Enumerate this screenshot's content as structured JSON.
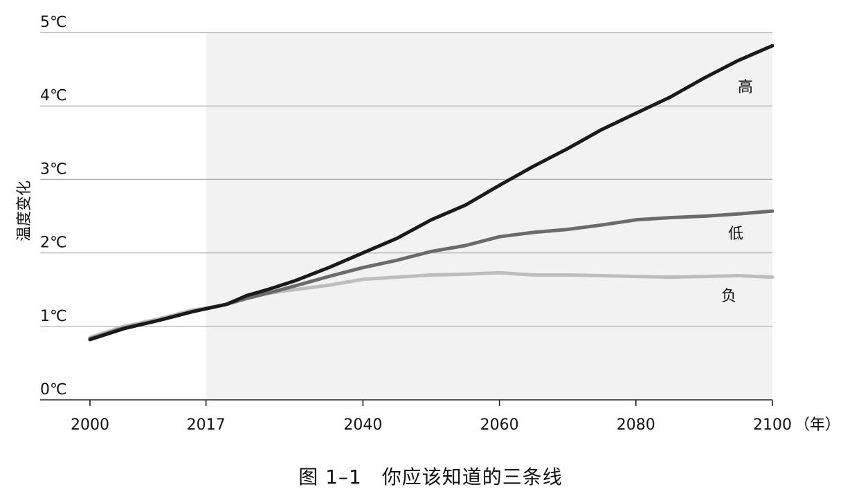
{
  "chart_data": {
    "type": "line",
    "caption": "图 1–1　你应该知道的三条线",
    "ylabel": "温度变化",
    "x_unit": "（年）",
    "xlim": [
      1996,
      2100
    ],
    "ylim": [
      0,
      5
    ],
    "xticks": [
      2000,
      2017,
      2040,
      2060,
      2080,
      2100
    ],
    "xtick_labels": [
      "2000",
      "2017",
      "2040",
      "2060",
      "2080",
      "2100"
    ],
    "yticks": [
      0,
      1,
      2,
      3,
      4,
      5
    ],
    "ytick_labels": [
      "0℃",
      "1℃",
      "2℃",
      "3℃",
      "4℃",
      "5℃"
    ],
    "shaded_region": [
      2017,
      2100
    ],
    "grid": "horizontal",
    "colors": {
      "high": "#1a1a1a",
      "low": "#6b6b6b",
      "negative": "#bdbdbd",
      "shade": "#f2f2f2",
      "grid": "#aaaaaa"
    },
    "series": [
      {
        "name": "高",
        "x": [
          2000,
          2005,
          2010,
          2015,
          2017,
          2020,
          2023,
          2026,
          2030,
          2035,
          2040,
          2045,
          2050,
          2055,
          2060,
          2065,
          2070,
          2075,
          2080,
          2085,
          2090,
          2095,
          2100
        ],
        "y": [
          0.82,
          0.97,
          1.08,
          1.2,
          1.24,
          1.3,
          1.42,
          1.5,
          1.62,
          1.8,
          2.0,
          2.2,
          2.45,
          2.65,
          2.92,
          3.18,
          3.42,
          3.68,
          3.9,
          4.12,
          4.38,
          4.62,
          4.82
        ]
      },
      {
        "name": "低",
        "x": [
          2000,
          2005,
          2010,
          2015,
          2017,
          2020,
          2023,
          2026,
          2030,
          2035,
          2040,
          2045,
          2050,
          2055,
          2060,
          2065,
          2070,
          2075,
          2080,
          2085,
          2090,
          2095,
          2100
        ],
        "y": [
          0.83,
          0.98,
          1.08,
          1.2,
          1.24,
          1.3,
          1.38,
          1.45,
          1.55,
          1.68,
          1.8,
          1.9,
          2.02,
          2.1,
          2.22,
          2.28,
          2.32,
          2.38,
          2.45,
          2.48,
          2.5,
          2.53,
          2.57
        ]
      },
      {
        "name": "负",
        "x": [
          2000,
          2005,
          2010,
          2015,
          2017,
          2020,
          2023,
          2026,
          2030,
          2035,
          2040,
          2045,
          2050,
          2055,
          2060,
          2065,
          2070,
          2075,
          2080,
          2085,
          2090,
          2095,
          2100
        ],
        "y": [
          0.85,
          1.0,
          1.1,
          1.22,
          1.25,
          1.3,
          1.4,
          1.45,
          1.5,
          1.56,
          1.64,
          1.67,
          1.7,
          1.71,
          1.73,
          1.7,
          1.7,
          1.69,
          1.68,
          1.67,
          1.68,
          1.69,
          1.67
        ]
      }
    ]
  }
}
